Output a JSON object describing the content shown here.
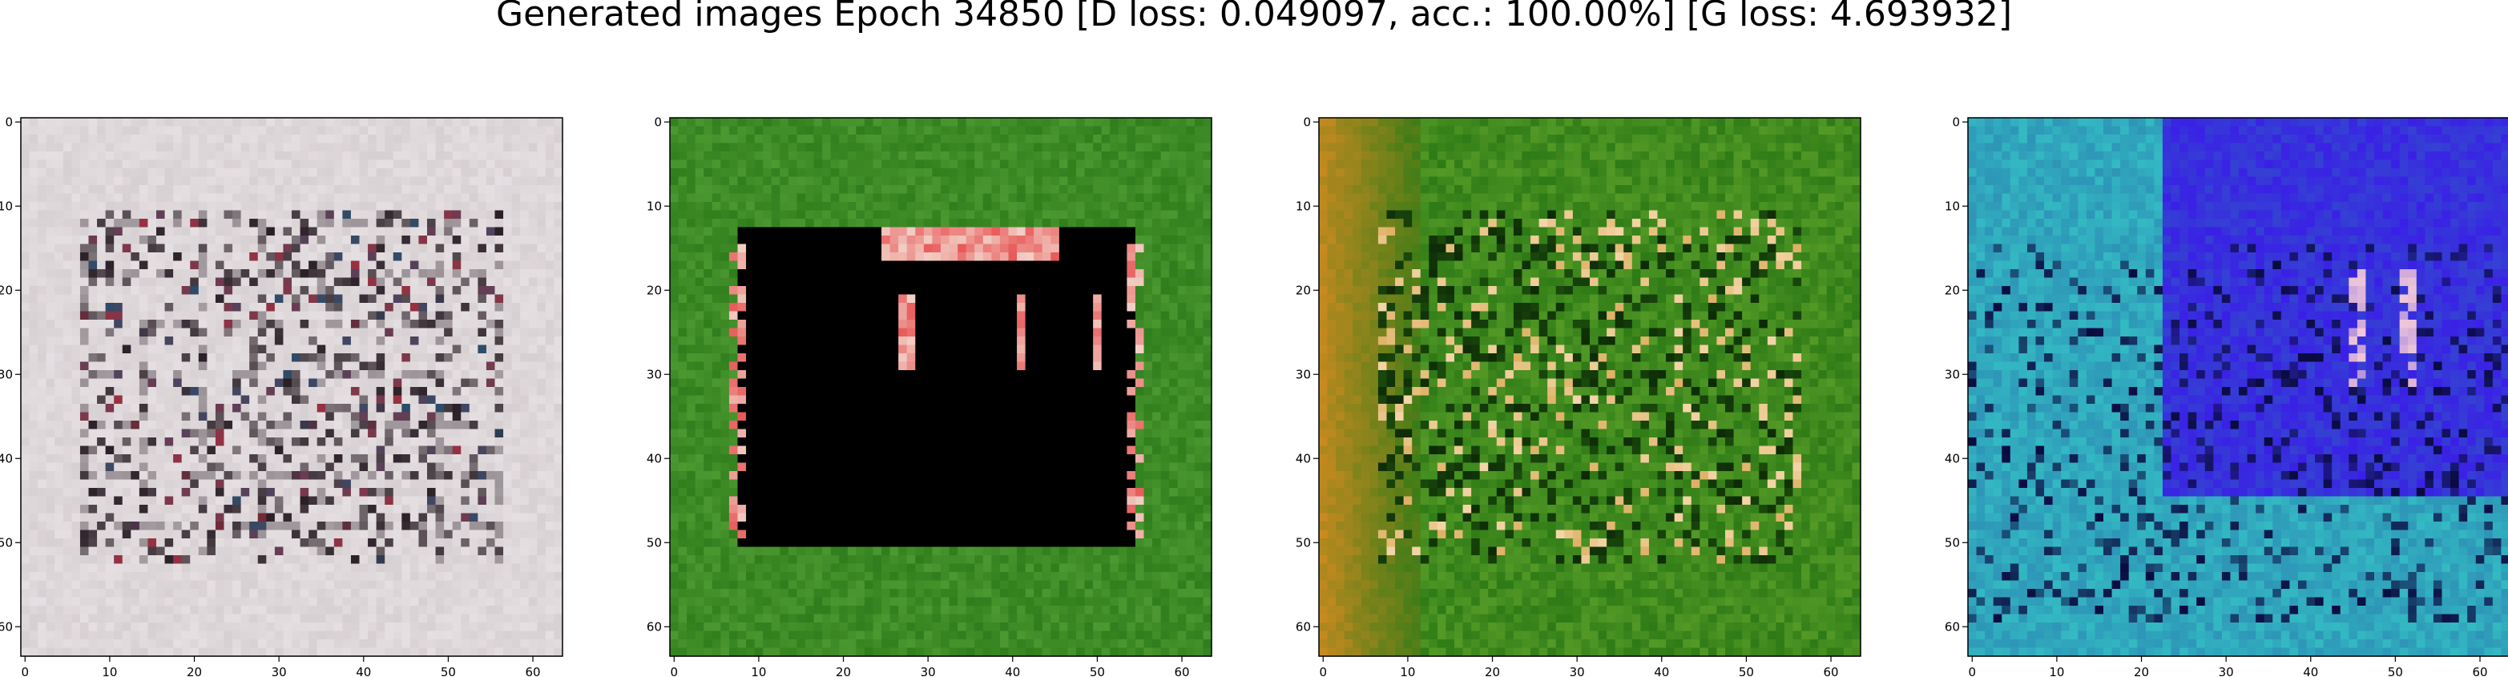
{
  "title": "Generated images Epoch 34850 [D loss: 0.049097, acc.: 100.00%] [G loss: 4.693932]",
  "chart_data": [
    {
      "type": "heatmap",
      "ticks": [
        "0",
        "10",
        "20",
        "30",
        "40",
        "50",
        "60"
      ],
      "tick_values": [
        0,
        10,
        20,
        30,
        40,
        50,
        60
      ],
      "xlim": [
        -0.5,
        63.5
      ],
      "ylim": [
        63.5,
        -0.5
      ],
      "theme": "grey-white",
      "colors": {
        "base": "#d7d0d3",
        "accent1": "#9a3040",
        "accent2": "#2c4c6a",
        "dark": "#2a1f26",
        "light": "#f6f2f5"
      },
      "grid": false
    },
    {
      "type": "heatmap",
      "ticks": [
        "0",
        "10",
        "20",
        "30",
        "40",
        "50",
        "60"
      ],
      "tick_values": [
        0,
        10,
        20,
        30,
        40,
        50,
        60
      ],
      "xlim": [
        -0.5,
        63.5
      ],
      "ylim": [
        63.5,
        -0.5
      ],
      "theme": "green-black",
      "colors": {
        "base": "#2f7d1c",
        "accent1": "#e85a5a",
        "accent2": "#f2d2c8",
        "dark": "#000000",
        "light": "#6fb84a"
      },
      "grid": false
    },
    {
      "type": "heatmap",
      "ticks": [
        "0",
        "10",
        "20",
        "30",
        "40",
        "50",
        "60"
      ],
      "tick_values": [
        0,
        10,
        20,
        30,
        40,
        50,
        60
      ],
      "xlim": [
        -0.5,
        63.5
      ],
      "ylim": [
        63.5,
        -0.5
      ],
      "theme": "green-orange",
      "colors": {
        "base": "#2e7a16",
        "accent1": "#c98a20",
        "accent2": "#f3d6a8",
        "dark": "#0d2a06",
        "light": "#7fbf3a"
      },
      "grid": false
    },
    {
      "type": "heatmap",
      "ticks": [
        "0",
        "10",
        "20",
        "30",
        "40",
        "50",
        "60"
      ],
      "tick_values": [
        0,
        10,
        20,
        30,
        40,
        50,
        60
      ],
      "xlim": [
        -0.5,
        63.5
      ],
      "ylim": [
        63.5,
        -0.5
      ],
      "theme": "blue-teal",
      "colors": {
        "base": "#2a7fb0",
        "accent1": "#3a20e6",
        "accent2": "#f0c8d8",
        "dark": "#0a0a40",
        "light": "#36c8c8"
      },
      "grid": false
    }
  ]
}
